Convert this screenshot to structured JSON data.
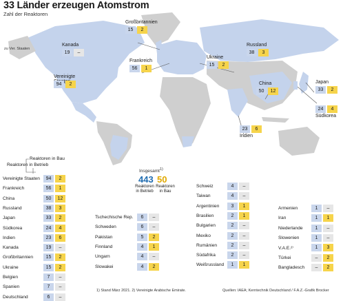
{
  "title": "33 Länder erzeugen Atomstrom",
  "subtitle": "Zahl der Reaktoren",
  "colors": {
    "operating": "#c9d6ec",
    "construction": "#f6d44b",
    "land": "#cfcfcf",
    "nuclear_land": "#c4d3ec"
  },
  "map": {
    "abbrev_note": "zu Ver. Staaten",
    "labels": {
      "kanada": {
        "name": "Kanada",
        "op": "19",
        "bu": "–"
      },
      "usa": {
        "name": "Vereinigte Staaten",
        "op": "94",
        "bu": "2"
      },
      "gb": {
        "name": "Großbritannien",
        "op": "15",
        "bu": "2"
      },
      "fr": {
        "name": "Frankreich",
        "op": "56",
        "bu": "1"
      },
      "ua": {
        "name": "Ukraine",
        "op": "15",
        "bu": "2"
      },
      "ru": {
        "name": "Russland",
        "op": "38",
        "bu": "3"
      },
      "cn": {
        "name": "China",
        "op": "50",
        "bu": "12"
      },
      "jp": {
        "name": "Japan",
        "op": "33",
        "bu": "2"
      },
      "kr": {
        "name": "Südkorea",
        "op": "24",
        "bu": "4"
      },
      "in": {
        "name": "Indien",
        "op": "23",
        "bu": "6"
      }
    }
  },
  "legend": {
    "construction": "Reaktoren in Bau",
    "operating": "Reaktoren in Betrieb"
  },
  "totals": {
    "label": "Insgesamt",
    "note": "1)",
    "operating": "443",
    "construction": "50",
    "operating_label": "Reaktoren in Betrieb",
    "construction_label": "Reaktoren in Bau"
  },
  "chart_data": {
    "type": "table",
    "title": "33 Länder erzeugen Atomstrom",
    "subtitle": "Zahl der Reaktoren",
    "columns": [
      "Reaktoren in Betrieb",
      "Reaktoren in Bau"
    ],
    "col1": [
      {
        "country": "Vereinigte Staaten",
        "op": "94",
        "bu": "2"
      },
      {
        "country": "Frankreich",
        "op": "56",
        "bu": "1"
      },
      {
        "country": "China",
        "op": "50",
        "bu": "12"
      },
      {
        "country": "Russland",
        "op": "38",
        "bu": "3"
      },
      {
        "country": "Japan",
        "op": "33",
        "bu": "2"
      },
      {
        "country": "Südkorea",
        "op": "24",
        "bu": "4"
      },
      {
        "country": "Indien",
        "op": "23",
        "bu": "6"
      },
      {
        "country": "Kanada",
        "op": "19",
        "bu": "–"
      },
      {
        "country": "Großbritannien",
        "op": "15",
        "bu": "2"
      },
      {
        "country": "Ukraine",
        "op": "15",
        "bu": "2"
      },
      {
        "country": "Belgien",
        "op": "7",
        "bu": "–"
      },
      {
        "country": "Spanien",
        "op": "7",
        "bu": "–"
      },
      {
        "country": "Deutschland",
        "op": "6",
        "bu": "–"
      }
    ],
    "col2": [
      {
        "country": "Tschechische Rep.",
        "op": "6",
        "bu": "–"
      },
      {
        "country": "Schweden",
        "op": "6",
        "bu": "–"
      },
      {
        "country": "Pakistan",
        "op": "5",
        "bu": "2"
      },
      {
        "country": "Finnland",
        "op": "4",
        "bu": "1"
      },
      {
        "country": "Ungarn",
        "op": "4",
        "bu": "–"
      },
      {
        "country": "Slowakei",
        "op": "4",
        "bu": "2"
      }
    ],
    "col3": [
      {
        "country": "Schweiz",
        "op": "4",
        "bu": "–"
      },
      {
        "country": "Taiwan",
        "op": "4",
        "bu": "–"
      },
      {
        "country": "Argentinien",
        "op": "3",
        "bu": "1"
      },
      {
        "country": "Brasilien",
        "op": "2",
        "bu": "1"
      },
      {
        "country": "Bulgarien",
        "op": "2",
        "bu": "–"
      },
      {
        "country": "Mexiko",
        "op": "2",
        "bu": "–"
      },
      {
        "country": "Rumänien",
        "op": "2",
        "bu": "–"
      },
      {
        "country": "Südafrika",
        "op": "2",
        "bu": "–"
      },
      {
        "country": "Weißrussland",
        "op": "1",
        "bu": "1"
      }
    ],
    "col4": [
      {
        "country": "Armenien",
        "op": "1",
        "bu": "–"
      },
      {
        "country": "Iran",
        "op": "1",
        "bu": "1"
      },
      {
        "country": "Niederlande",
        "op": "1",
        "bu": "–"
      },
      {
        "country": "Slowenien",
        "op": "1",
        "bu": "–"
      },
      {
        "country": "V.A.E.²⁾",
        "op": "1",
        "bu": "3"
      },
      {
        "country": "Türkei",
        "op": "–",
        "bu": "2"
      },
      {
        "country": "Bangladesch",
        "op": "–",
        "bu": "2"
      }
    ]
  },
  "footnote": "1) Stand März 2021. 2) Vereinigte Arabische Emirate.",
  "source": "Quellen: IAEA; Kerntechnik Deutschland / F.A.Z.-Grafik Brocker"
}
